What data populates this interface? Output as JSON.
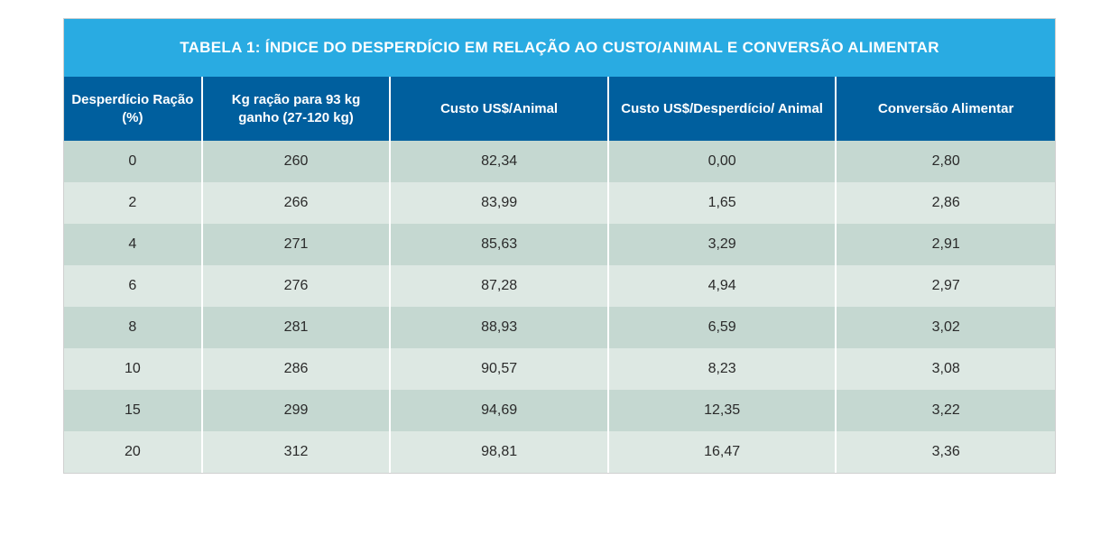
{
  "table": {
    "type": "table",
    "title": "TABELA 1: ÍNDICE DO DESPERDÍCIO EM RELAÇÃO AO CUSTO/ANIMAL E CONVERSÃO ALIMENTAR",
    "title_bg": "#29abe2",
    "title_color": "#ffffff",
    "title_fontsize": 17,
    "header_bg": "#005f9e",
    "header_color": "#ffffff",
    "header_fontsize": 15,
    "row_odd_bg": "#c5d8d1",
    "row_even_bg": "#dde8e3",
    "cell_color": "#2a2a2a",
    "cell_fontsize": 16,
    "border_color": "#ffffff",
    "columns": [
      {
        "label": "Desperdício Ração (%)",
        "width": "14%"
      },
      {
        "label": "Kg ração para 93 kg ganho (27-120 kg)",
        "width": "19%"
      },
      {
        "label": "Custo US$/Animal",
        "width": "22%"
      },
      {
        "label": "Custo US$/Desperdício/ Animal",
        "width": "23%"
      },
      {
        "label": "Conversão Alimentar",
        "width": "22%"
      }
    ],
    "rows": [
      [
        "0",
        "260",
        "82,34",
        "0,00",
        "2,80"
      ],
      [
        "2",
        "266",
        "83,99",
        "1,65",
        "2,86"
      ],
      [
        "4",
        "271",
        "85,63",
        "3,29",
        "2,91"
      ],
      [
        "6",
        "276",
        "87,28",
        "4,94",
        "2,97"
      ],
      [
        "8",
        "281",
        "88,93",
        "6,59",
        "3,02"
      ],
      [
        "10",
        "286",
        "90,57",
        "8,23",
        "3,08"
      ],
      [
        "15",
        "299",
        "94,69",
        "12,35",
        "3,22"
      ],
      [
        "20",
        "312",
        "98,81",
        "16,47",
        "3,36"
      ]
    ]
  }
}
